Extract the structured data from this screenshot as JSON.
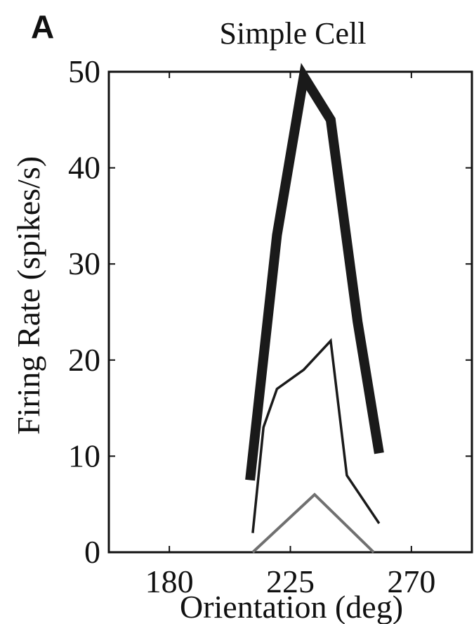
{
  "panel_label": "A",
  "chart_data": {
    "type": "line",
    "title": "Simple Cell",
    "xlabel": "Orientation (deg)",
    "ylabel": "Firing Rate (spikes/s)",
    "xlim": [
      157.5,
      292.5
    ],
    "ylim": [
      0,
      50
    ],
    "xticks": [
      180,
      225,
      270
    ],
    "yticks": [
      0,
      10,
      20,
      30,
      40,
      50
    ],
    "grid": false,
    "series": [
      {
        "x": [
          210,
          220,
          230,
          240,
          250,
          258
        ],
        "y": [
          7.5,
          33,
          49.5,
          45,
          24,
          10.3
        ],
        "color": "#1a1a1a",
        "weight": "thick"
      },
      {
        "x": [
          211,
          215,
          220,
          230,
          240,
          246,
          258
        ],
        "y": [
          2,
          13,
          17,
          19,
          22,
          8,
          3
        ],
        "color": "#1a1a1a",
        "weight": "thin"
      },
      {
        "x": [
          211,
          234,
          256
        ],
        "y": [
          0,
          6,
          0
        ],
        "color": "#707070",
        "weight": "medium"
      }
    ]
  }
}
